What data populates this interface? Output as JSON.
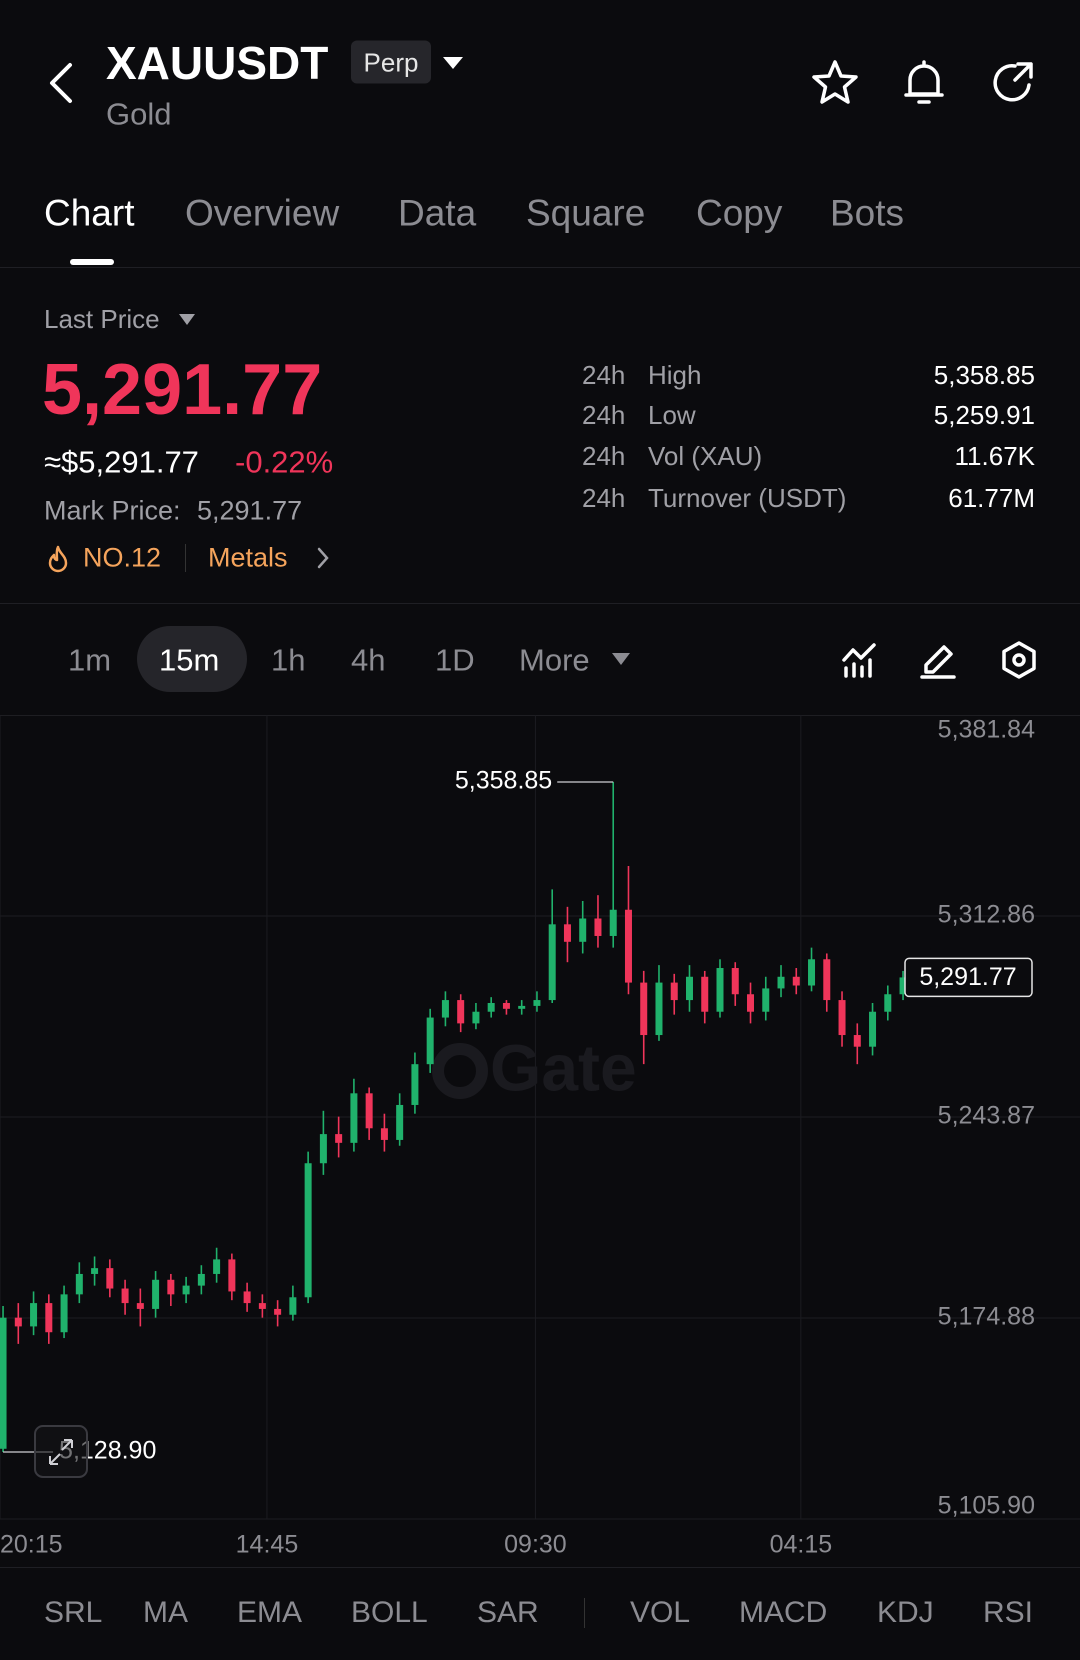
{
  "header": {
    "symbol": "XAUUSDT",
    "contract": "Perp",
    "name": "Gold"
  },
  "tabs": [
    "Chart",
    "Overview",
    "Data",
    "Square",
    "Copy",
    "Bots"
  ],
  "ticker": {
    "last_price_label": "Last Price",
    "last_price": "5,291.77",
    "usd_price": "≈$5,291.77",
    "change": "-0.22%",
    "mark_price_label": "Mark Price:",
    "mark_price": "5,291.77",
    "rank": "NO.12",
    "sector": "Metals"
  },
  "stats": [
    {
      "period": "24h",
      "label": "High",
      "value": "5,358.85"
    },
    {
      "period": "24h",
      "label": "Low",
      "value": "5,259.91"
    },
    {
      "period": "24h",
      "label": "Vol (XAU)",
      "value": "11.67K"
    },
    {
      "period": "24h",
      "label": "Turnover (USDT)",
      "value": "61.77M"
    }
  ],
  "timeframes": [
    "1m",
    "15m",
    "1h",
    "4h",
    "1D",
    "More"
  ],
  "indicators_main": [
    "SRL",
    "MA",
    "EMA",
    "BOLL",
    "SAR"
  ],
  "indicators_sub": [
    "VOL",
    "MACD",
    "KDJ",
    "RSI"
  ],
  "chart_data": {
    "type": "candlestick",
    "open": [
      5130,
      5175,
      5172,
      5180,
      5170,
      5183,
      5190,
      5192,
      5185,
      5180,
      5178,
      5188,
      5183,
      5186,
      5190,
      5195,
      5184,
      5180,
      5178,
      5176,
      5182,
      5228,
      5238,
      5235,
      5252,
      5240,
      5236,
      5248,
      5262,
      5278,
      5284,
      5276,
      5280,
      5283,
      5281,
      5282,
      5284,
      5310,
      5304,
      5312,
      5306,
      5315,
      5290,
      5272,
      5290,
      5284,
      5292,
      5280,
      5295,
      5286,
      5280,
      5288,
      5292,
      5289,
      5298,
      5284,
      5272,
      5268,
      5280,
      5286
    ],
    "high": [
      5179,
      5180,
      5184,
      5183,
      5186,
      5194,
      5196,
      5195,
      5188,
      5185,
      5191,
      5190,
      5189,
      5193,
      5199,
      5197,
      5187,
      5183,
      5181,
      5186,
      5232,
      5246,
      5244,
      5257,
      5254,
      5245,
      5252,
      5266,
      5281,
      5287,
      5286,
      5283,
      5285,
      5284,
      5284,
      5287,
      5322,
      5316,
      5318,
      5320,
      5358.85,
      5330,
      5294,
      5296,
      5293,
      5296,
      5294,
      5298,
      5297,
      5290,
      5292,
      5296,
      5295,
      5302,
      5300,
      5287,
      5276,
      5283,
      5289,
      5294
    ],
    "low": [
      5128.9,
      5166,
      5169,
      5166,
      5168,
      5180,
      5186,
      5182,
      5176,
      5172,
      5175,
      5179,
      5180,
      5183,
      5187,
      5181,
      5177,
      5175,
      5172,
      5174,
      5180,
      5224,
      5230,
      5232,
      5236,
      5232,
      5234,
      5245,
      5259,
      5275,
      5273,
      5274,
      5278,
      5279,
      5279,
      5280,
      5283,
      5297,
      5300,
      5302,
      5302,
      5286,
      5262,
      5270,
      5279,
      5280,
      5276,
      5278,
      5282,
      5276,
      5277,
      5285,
      5286,
      5287,
      5280,
      5268,
      5262,
      5265,
      5277,
      5284
    ],
    "close": [
      5175,
      5172,
      5180,
      5170,
      5183,
      5190,
      5192,
      5185,
      5180,
      5178,
      5188,
      5183,
      5186,
      5190,
      5195,
      5184,
      5180,
      5178,
      5176,
      5182,
      5228,
      5238,
      5235,
      5252,
      5240,
      5236,
      5248,
      5262,
      5278,
      5284,
      5276,
      5280,
      5283,
      5281,
      5282,
      5284,
      5310,
      5304,
      5312,
      5306,
      5315,
      5290,
      5272,
      5290,
      5284,
      5292,
      5280,
      5295,
      5286,
      5280,
      5288,
      5292,
      5289,
      5298,
      5284,
      5272,
      5268,
      5280,
      5286,
      5291.77
    ],
    "up_color": "#20b26c",
    "down_color": "#f0355a",
    "ylim": [
      5105.9,
      5381.84
    ],
    "yticks": [
      {
        "value": 5381.84,
        "label": "5,381.84"
      },
      {
        "value": 5312.86,
        "label": "5,312.86"
      },
      {
        "value": 5243.87,
        "label": "5,243.87"
      },
      {
        "value": 5174.88,
        "label": "5,174.88"
      },
      {
        "value": 5105.9,
        "label": "5,105.90"
      }
    ],
    "xlim": [
      -0.2,
      70.6
    ],
    "xticks": [
      {
        "value": -0.2,
        "label": "20:15"
      },
      {
        "value": 17.3,
        "label": "14:45"
      },
      {
        "value": 34.9,
        "label": "09:30"
      },
      {
        "value": 52.3,
        "label": "04:15"
      }
    ],
    "grid": true,
    "max_label": "5,358.85",
    "min_label": "5,128.90",
    "last_label": "5,291.77",
    "watermark": "Gate"
  }
}
